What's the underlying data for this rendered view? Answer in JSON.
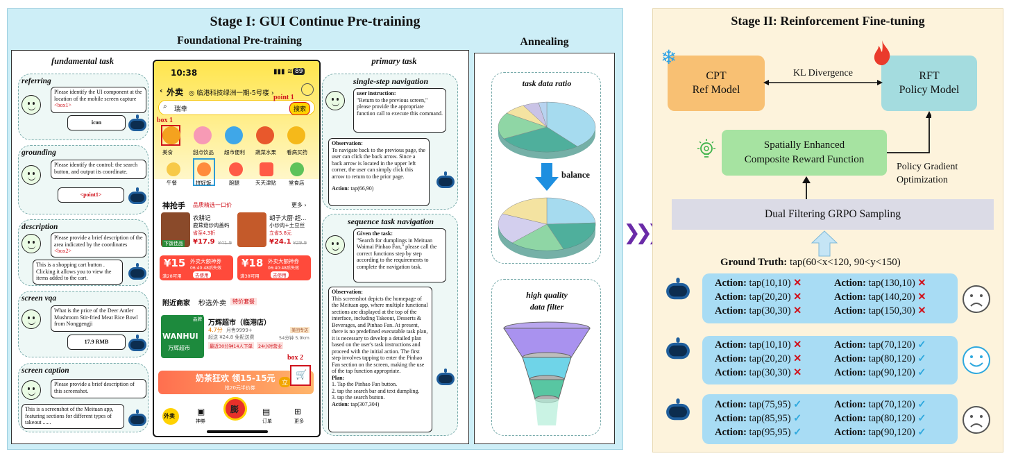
{
  "stage1": {
    "title": "Stage I: GUI Continue Pre-training",
    "foundational": "Foundational Pre-training",
    "annealing": "Annealing",
    "fundamental_task": "fundamental task",
    "primary_task": "primary  task",
    "referring": {
      "label": "referring",
      "question": "Please identify the UI component at the location of the mobile screen capture ",
      "box": "<box1>",
      "answer": "icon"
    },
    "grounding": {
      "label": "grounding",
      "question": "Please identify the control: the search button, and output its coordinate.",
      "answer": "<point1>"
    },
    "description": {
      "label": "description",
      "question": "Please provide a brief description of the area indicated by the coordinates ",
      "box": "<box2>",
      "answer": "This is a shopping cart button . Clicking it allows you to view the items added to the cart."
    },
    "screen_vqa": {
      "label": "screen vqa",
      "question": "What is the price of the Deer Antler Mushroom Stir-fried Meat Rice Bowl from Nonggengji",
      "answer": "17.9 RMB"
    },
    "screen_caption": {
      "label": "screen caption",
      "question": "Please provide a brief description of this screenshot.",
      "answer": "This is a screenshot of the Meituan app, featuring sections for different types of takeout ......"
    },
    "single_step": {
      "label": "single-step navigation",
      "instr_title": "user instruction:",
      "instr": "\"Return to the previous screen,\" please provide the appropriate function call to execute this command.",
      "obs_title": "Observation:",
      "obs": "To navigate back to the previous page, the user can click the back arrow. Since a back arrow is located in the upper left corner, the user can simply click this arrow to return to the prior page.",
      "action_label": "Action:",
      "action": " tap(66,90)"
    },
    "sequence": {
      "label": "sequence task navigation",
      "task_title": "Given the task:",
      "task": "\"Search for dumplings in Meituan Waimai Pinhao Fan,\" please call the correct functions step by step according to the requirements to complete the navigation task.",
      "obs_title": "Observation:",
      "obs": "This screenshot depicts the homepage of the Meituan app, where multiple functional sections are displayed at the top of the interface, including Takeout, Desserts & Beverages, and Pinhao Fan. At present, there is no predefined executable task plan, it is necessary to develop a detailed plan based on the user's task instructions and proceed with the initial action. The first step involves tapping to enter the Pinhao Fan section on the screen, making the use of the tap function appropriate.",
      "plan_title": "Plan:",
      "plan": [
        "1. Tap the Pinhao Fan button.",
        "2. tap the search bar and text dumpling.",
        "3. tap the search button."
      ],
      "action_label": "Action:",
      "action": " tap(307,304)"
    },
    "annealing_box": {
      "ratio": "task data ratio",
      "balance": "balance",
      "quality": "high quality\ndata filter"
    }
  },
  "phone": {
    "time": "10:38",
    "battery": "89",
    "tab": "外卖",
    "location": "临港科技绿洲一期-5号楼",
    "search": "瑞幸",
    "search_btn": "搜索",
    "point1": "point 1",
    "box1": "box 1",
    "box2": "box 2",
    "row1": [
      "美食",
      "甜点饮品",
      "超市便利",
      "蔬菜水果",
      "看病买药"
    ],
    "row2": [
      "午餐",
      "拼好饭",
      "跑腿",
      "天天津贴",
      "堂食店"
    ],
    "shen": "神抢手",
    "shen_sub": "品质精选一口价",
    "more": "更多 ›",
    "item1_name": "农耕记",
    "item1_desc": "鹿茸菇炒肉盖码",
    "item1_tag": "下饭佳品",
    "item1_disc": "省至4.3折",
    "item1_price": "¥17.9",
    "item1_old": "¥41.9",
    "item2_name": "胡子大厨·超...",
    "item2_desc": "小炒肉+土豆丝",
    "item2_disc": "立省5.8元",
    "item2_price": "¥24.1",
    "item2_old": "¥29.9",
    "coupon1": {
      "amount": "¥15",
      "note": "满28可用",
      "title": "外卖大额神券",
      "time": "06:40:48后失效",
      "btn": "去使用"
    },
    "coupon2": {
      "amount": "¥18",
      "note": "满38可用",
      "title": "外卖大额神券",
      "time": "06:40:48后失效",
      "btn": "去使用"
    },
    "nearby": "附近商家",
    "fresh": "秒选外卖",
    "special": "特价套餐",
    "store_name": "万辉超市（临港店）",
    "store_tag": "品牌",
    "store_logo": "WANHUI",
    "store_logo_cn": "万辉超市",
    "store_rating": "4.7分",
    "store_sales": "月售9999+",
    "store_fee": "起送 ¥24.8  免配送费",
    "store_time": "54分钟 5.9km",
    "store_promo1": "最近30分钟14人下单",
    "store_promo2": "24小时营业",
    "store_badge": "美团专送",
    "banner": "奶茶狂欢 领15-15元",
    "banner_sub": "抢20元半价券",
    "banner_btn": "立",
    "nav": [
      "外卖",
      "神券",
      "",
      "订单",
      "更多"
    ],
    "nav_center": "膨"
  },
  "stage2": {
    "title": "Stage II:  Reinforcement Fine-tuning",
    "cpt": "CPT\nRef Model",
    "rft": "RFT\nPolicy Model",
    "kl": "KL Divergence",
    "reward": "Spatially Enhanced\nComposite Reward Function",
    "policy": "Policy Gradient\nOptimization",
    "sampling": "Dual Filtering GRPO Sampling",
    "gt_label": "Ground Truth:",
    "gt_value": " tap(60<x<120, 90<y<150)",
    "action_label": "Action:",
    "groups": [
      {
        "left": [
          " tap(10,10)",
          " tap(20,20)",
          " tap(30,30)"
        ],
        "left_ok": [
          false,
          false,
          false
        ],
        "right": [
          " tap(130,10)",
          " tap(140,20)",
          " tap(150,30)"
        ],
        "right_ok": [
          false,
          false,
          false
        ],
        "mood": "sad"
      },
      {
        "left": [
          " tap(10,10)",
          " tap(20,20)",
          " tap(30,30)"
        ],
        "left_ok": [
          false,
          false,
          false
        ],
        "right": [
          " tap(70,120)",
          " tap(80,120)",
          " tap(90,120)"
        ],
        "right_ok": [
          true,
          true,
          true
        ],
        "mood": "happy"
      },
      {
        "left": [
          " tap(75,95)",
          " tap(85,95)",
          " tap(95,95)"
        ],
        "left_ok": [
          true,
          true,
          true
        ],
        "right": [
          " tap(70,120)",
          " tap(80,120)",
          " tap(90,120)"
        ],
        "right_ok": [
          true,
          true,
          true
        ],
        "mood": "sad"
      }
    ],
    "mark_x": "✕",
    "mark_ok": "✓"
  }
}
